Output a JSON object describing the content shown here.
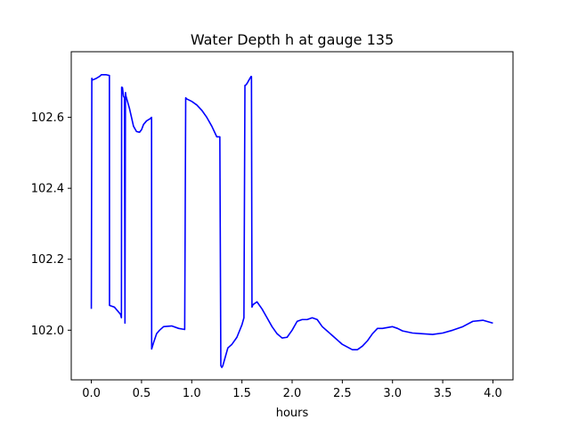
{
  "chart_data": {
    "type": "line",
    "title": "Water Depth h at gauge 135",
    "xlabel": "hours",
    "ylabel": "",
    "xlim": [
      -0.2,
      4.2
    ],
    "ylim": [
      101.86,
      102.785
    ],
    "xticks": [
      0.0,
      0.5,
      1.0,
      1.5,
      2.0,
      2.5,
      3.0,
      3.5,
      4.0
    ],
    "xtick_labels": [
      "0.0",
      "0.5",
      "1.0",
      "1.5",
      "2.0",
      "2.5",
      "3.0",
      "3.5",
      "4.0"
    ],
    "yticks": [
      102.0,
      102.2,
      102.4,
      102.6
    ],
    "ytick_labels": [
      "102.0",
      "102.2",
      "102.4",
      "102.6"
    ],
    "grid": false,
    "series": [
      {
        "color": "#0000ff",
        "x": [
          0.0,
          0.005,
          0.01,
          0.05,
          0.08,
          0.1,
          0.15,
          0.18,
          0.181,
          0.2,
          0.23,
          0.26,
          0.29,
          0.3,
          0.302,
          0.31,
          0.32,
          0.33,
          0.335,
          0.34,
          0.345,
          0.36,
          0.38,
          0.4,
          0.42,
          0.45,
          0.48,
          0.5,
          0.52,
          0.55,
          0.58,
          0.6,
          0.601,
          0.62,
          0.65,
          0.68,
          0.72,
          0.8,
          0.87,
          0.93,
          0.94,
          0.95,
          1.0,
          1.05,
          1.1,
          1.15,
          1.2,
          1.25,
          1.28,
          1.29,
          1.3,
          1.31,
          1.33,
          1.36,
          1.4,
          1.45,
          1.5,
          1.52,
          1.53,
          1.535,
          1.55,
          1.57,
          1.59,
          1.595,
          1.6,
          1.61,
          1.65,
          1.7,
          1.75,
          1.8,
          1.85,
          1.9,
          1.95,
          2.0,
          2.05,
          2.1,
          2.15,
          2.2,
          2.25,
          2.3,
          2.4,
          2.5,
          2.6,
          2.65,
          2.7,
          2.75,
          2.8,
          2.85,
          2.9,
          3.0,
          3.05,
          3.1,
          3.2,
          3.3,
          3.4,
          3.5,
          3.6,
          3.7,
          3.8,
          3.9,
          4.0
        ],
        "y": [
          102.06,
          102.71,
          102.705,
          102.71,
          102.715,
          102.72,
          102.72,
          102.718,
          102.07,
          102.068,
          102.065,
          102.055,
          102.045,
          102.035,
          102.685,
          102.684,
          102.66,
          102.655,
          102.02,
          102.67,
          102.66,
          102.645,
          102.625,
          102.6,
          102.575,
          102.56,
          102.558,
          102.565,
          102.58,
          102.59,
          102.595,
          102.6,
          101.947,
          101.965,
          101.99,
          102.0,
          102.01,
          102.012,
          102.005,
          102.002,
          102.655,
          102.652,
          102.645,
          102.635,
          102.62,
          102.6,
          102.575,
          102.545,
          102.545,
          101.9,
          101.895,
          101.9,
          101.92,
          101.95,
          101.96,
          101.98,
          102.015,
          102.035,
          102.69,
          102.69,
          102.695,
          102.705,
          102.715,
          102.715,
          102.065,
          102.072,
          102.08,
          102.06,
          102.035,
          102.01,
          101.99,
          101.978,
          101.98,
          102.0,
          102.025,
          102.03,
          102.03,
          102.035,
          102.03,
          102.01,
          101.985,
          101.96,
          101.945,
          101.945,
          101.955,
          101.97,
          101.99,
          102.005,
          102.005,
          102.01,
          102.005,
          101.998,
          101.992,
          101.99,
          101.988,
          101.992,
          102.0,
          102.01,
          102.025,
          102.028,
          102.02
        ]
      }
    ]
  }
}
